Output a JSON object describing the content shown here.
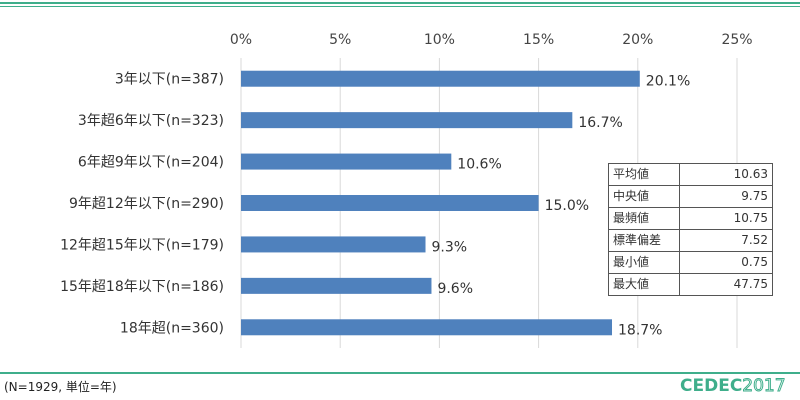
{
  "chart_data": {
    "type": "bar",
    "orientation": "horizontal",
    "categories": [
      "3年以下(n=387)",
      "3年超6年以下(n=323)",
      "6年超9年以下(n=204)",
      "9年超12年以下(n=290)",
      "12年超15年以下(n=179)",
      "15年超18年以下(n=186)",
      "18年超(n=360)"
    ],
    "values": [
      20.1,
      16.7,
      10.6,
      15.0,
      9.3,
      9.6,
      18.7
    ],
    "data_labels": [
      "20.1%",
      "16.7%",
      "10.6%",
      "15.0%",
      "9.3%",
      "9.6%",
      "18.7%"
    ],
    "x_ticks": [
      "0%",
      "5%",
      "10%",
      "15%",
      "20%",
      "25%"
    ],
    "xlim": [
      0,
      25
    ],
    "grid": true,
    "bar_color": "#4f81bd",
    "title": "",
    "xlabel": "",
    "ylabel": ""
  },
  "stats_table": [
    {
      "name": "平均値",
      "value": "10.63"
    },
    {
      "name": "中央値",
      "value": "9.75"
    },
    {
      "name": "最頻値",
      "value": "10.75"
    },
    {
      "name": "標準偏差",
      "value": "7.52"
    },
    {
      "name": "最小値",
      "value": "0.75"
    },
    {
      "name": "最大値",
      "value": "47.75"
    }
  ],
  "footnote": "(N=1929, 単位=年)",
  "logo": {
    "text": "CEDEC",
    "year": "2017"
  },
  "colors": {
    "accent": "#3fae8b",
    "bar": "#4f81bd",
    "grid": "#d9d9d9"
  }
}
